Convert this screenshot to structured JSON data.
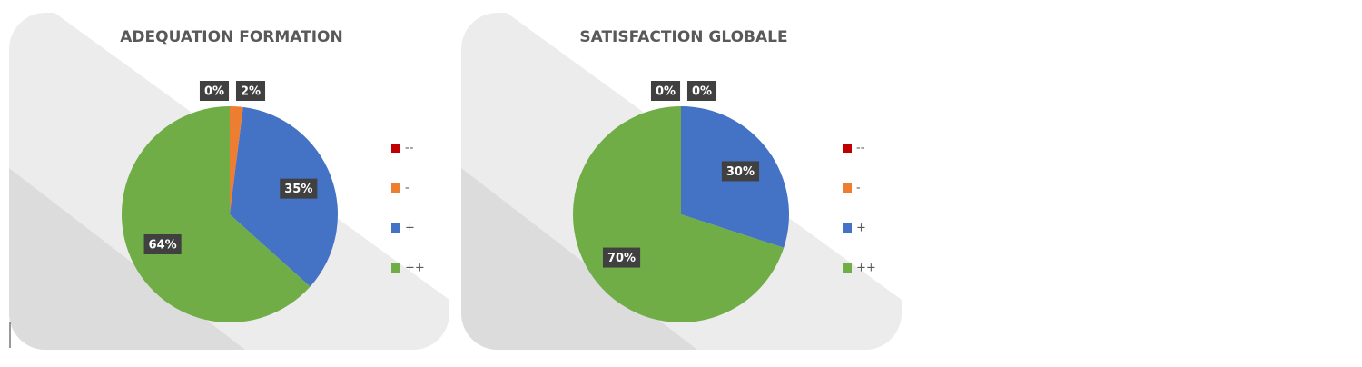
{
  "chart_data": [
    {
      "type": "pie",
      "title": "ADEQUATION FORMATION",
      "categories": [
        "--",
        "-",
        "+",
        "++"
      ],
      "values": [
        0,
        2,
        35,
        64
      ],
      "value_labels": [
        "0%",
        "2%",
        "35%",
        "64%"
      ],
      "colors": [
        "#c00000",
        "#ed7d31",
        "#4472c4",
        "#70ad47"
      ],
      "legend": "right"
    },
    {
      "type": "pie",
      "title": "SATISFACTION GLOBALE",
      "categories": [
        "--",
        "-",
        "+",
        "++"
      ],
      "values": [
        0,
        0,
        30,
        70
      ],
      "value_labels": [
        "0%",
        "0%",
        "30%",
        "70%"
      ],
      "colors": [
        "#c00000",
        "#ed7d31",
        "#4472c4",
        "#70ad47"
      ],
      "legend": "right"
    }
  ]
}
